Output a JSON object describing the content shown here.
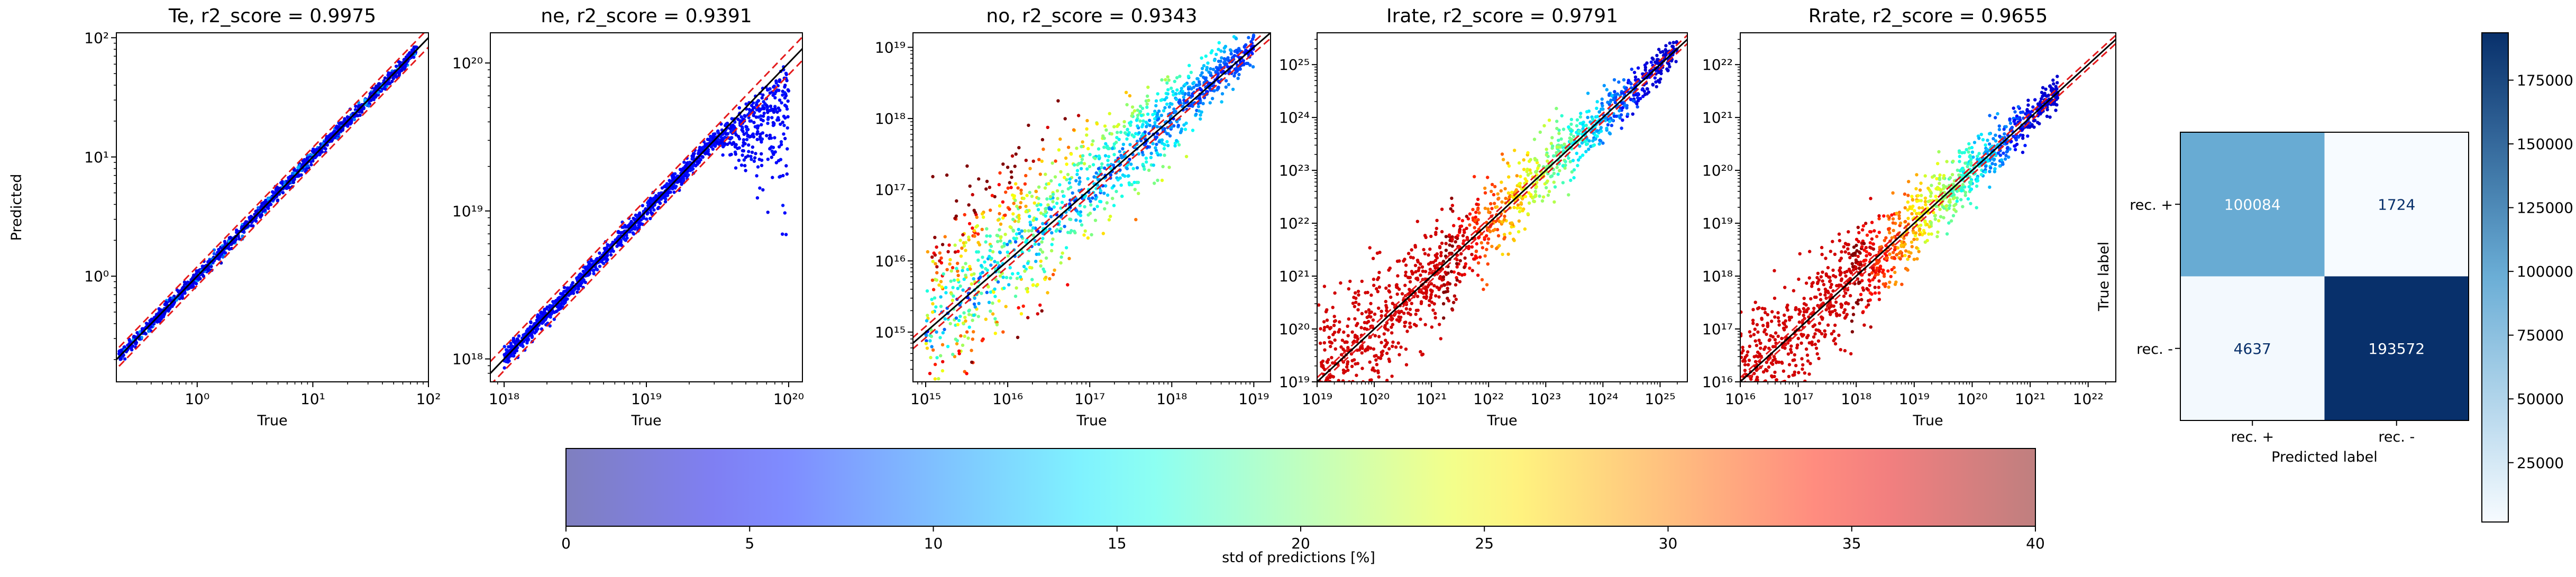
{
  "chart_data": [
    {
      "type": "scatter",
      "title": "Te, r2_score = 0.9975",
      "xlabel": "True",
      "ylabel": "Predicted",
      "xscale": "log",
      "yscale": "log",
      "xlim": [
        0.2,
        100
      ],
      "ylim": [
        0.13,
        110
      ],
      "xticks": [
        {
          "value": 1,
          "label": "10⁰"
        },
        {
          "value": 10,
          "label": "10¹"
        },
        {
          "value": 100,
          "label": "10²"
        }
      ],
      "yticks": [
        {
          "value": 1,
          "label": "10⁰"
        },
        {
          "value": 10,
          "label": "10¹"
        },
        {
          "value": 100,
          "label": "10²"
        }
      ],
      "data_range": [
        0.21,
        80
      ],
      "spread": "narrow",
      "color_scheme": "blue",
      "identity_line": "#000000",
      "bounds_line": "#e41a1c"
    },
    {
      "type": "scatter",
      "title": "ne, r2_score = 0.9391",
      "xlabel": "True",
      "ylabel": "",
      "xscale": "log",
      "yscale": "log",
      "xlim": [
        8e+17,
        1.25e+20
      ],
      "ylim": [
        7e+17,
        1.6e+20
      ],
      "xticks": [
        {
          "value": 1e+18,
          "label": "10¹⁸"
        },
        {
          "value": 1e+19,
          "label": "10¹⁹"
        },
        {
          "value": 1e+20,
          "label": "10²⁰"
        }
      ],
      "yticks": [
        {
          "value": 1e+18,
          "label": "10¹⁸"
        },
        {
          "value": 1e+19,
          "label": "10¹⁹"
        },
        {
          "value": 1e+20,
          "label": "10²⁰"
        }
      ],
      "data_range": [
        1e+18,
        1e+20
      ],
      "spread": "saturating",
      "color_scheme": "blue",
      "identity_line": "#000000",
      "bounds_line": "#e41a1c"
    },
    {
      "type": "scatter",
      "title": "no, r2_score = 0.9343",
      "xlabel": "True",
      "ylabel": "",
      "xscale": "log",
      "yscale": "log",
      "xlim": [
        700000000000000.0,
        1.6e+19
      ],
      "ylim": [
        200000000000000.0,
        1.6e+19
      ],
      "xticks": [
        {
          "value": 1000000000000000.0,
          "label": "10¹⁵"
        },
        {
          "value": 1e+16,
          "label": "10¹⁶"
        },
        {
          "value": 1e+17,
          "label": "10¹⁷"
        },
        {
          "value": 1e+18,
          "label": "10¹⁸"
        },
        {
          "value": 1e+19,
          "label": "10¹⁹"
        }
      ],
      "yticks": [
        {
          "value": 1000000000000000.0,
          "label": "10¹⁵"
        },
        {
          "value": 1e+16,
          "label": "10¹⁶"
        },
        {
          "value": 1e+17,
          "label": "10¹⁷"
        },
        {
          "value": 1e+18,
          "label": "10¹⁸"
        },
        {
          "value": 1e+19,
          "label": "10¹⁹"
        }
      ],
      "data_range": [
        1000000000000000.0,
        1e+19
      ],
      "spread": "wide-low",
      "color_scheme": "mixed",
      "identity_line": "#000000",
      "bounds_line": "#e41a1c"
    },
    {
      "type": "scatter",
      "title": "Irate, r2_score = 0.9791",
      "xlabel": "True",
      "ylabel": "",
      "xscale": "log",
      "yscale": "log",
      "xlim": [
        1e+19,
        3e+25
      ],
      "ylim": [
        1e+19,
        4e+25
      ],
      "xticks": [
        {
          "value": 1e+19,
          "label": "10¹⁹"
        },
        {
          "value": 1e+20,
          "label": "10²⁰"
        },
        {
          "value": 1e+21,
          "label": "10²¹"
        },
        {
          "value": 1e+22,
          "label": "10²²"
        },
        {
          "value": 1e+23,
          "label": "10²³"
        },
        {
          "value": 1e+24,
          "label": "10²⁴"
        },
        {
          "value": 1e+25,
          "label": "10²⁵"
        }
      ],
      "yticks": [
        {
          "value": 1e+19,
          "label": "10¹⁹"
        },
        {
          "value": 1e+20,
          "label": "10²⁰"
        },
        {
          "value": 1e+21,
          "label": "10²¹"
        },
        {
          "value": 1e+22,
          "label": "10²²"
        },
        {
          "value": 1e+23,
          "label": "10²³"
        },
        {
          "value": 1e+24,
          "label": "10²⁴"
        },
        {
          "value": 1e+25,
          "label": "10²⁵"
        }
      ],
      "data_range": [
        1e+19,
        2e+25
      ],
      "spread": "wide-low",
      "color_scheme": "hot-low",
      "identity_line": "#000000",
      "bounds_line": "#e41a1c"
    },
    {
      "type": "scatter",
      "title": "Rrate, r2_score = 0.9655",
      "xlabel": "True",
      "ylabel": "",
      "xscale": "log",
      "yscale": "log",
      "xlim": [
        1e+16,
        3e+22
      ],
      "ylim": [
        1e+16,
        4e+22
      ],
      "xticks": [
        {
          "value": 1e+16,
          "label": "10¹⁶"
        },
        {
          "value": 1e+17,
          "label": "10¹⁷"
        },
        {
          "value": 1e+18,
          "label": "10¹⁸"
        },
        {
          "value": 1e+19,
          "label": "10¹⁹"
        },
        {
          "value": 1e+20,
          "label": "10²⁰"
        },
        {
          "value": 1e+21,
          "label": "10²¹"
        },
        {
          "value": 1e+22,
          "label": "10²²"
        }
      ],
      "yticks": [
        {
          "value": 1e+16,
          "label": "10¹⁶"
        },
        {
          "value": 1e+17,
          "label": "10¹⁷"
        },
        {
          "value": 1e+18,
          "label": "10¹⁸"
        },
        {
          "value": 1e+19,
          "label": "10¹⁹"
        },
        {
          "value": 1e+20,
          "label": "10²⁰"
        },
        {
          "value": 1e+21,
          "label": "10²¹"
        },
        {
          "value": 1e+22,
          "label": "10²²"
        }
      ],
      "data_range": [
        1e+16,
        3e+21
      ],
      "spread": "wide-low",
      "color_scheme": "hot-low",
      "identity_line": "#000000",
      "bounds_line": "#e41a1c"
    },
    {
      "type": "heatmap",
      "title": "",
      "xlabel": "Predicted label",
      "ylabel": "True label",
      "x_categories": [
        "rec. +",
        "rec. -"
      ],
      "y_categories": [
        "rec. +",
        "rec. -"
      ],
      "values": [
        [
          100084,
          1724
        ],
        [
          4637,
          193572
        ]
      ],
      "colormap": "Blues",
      "value_range": [
        1724,
        193572
      ],
      "colorbar_ticks": [
        25000,
        50000,
        75000,
        100000,
        125000,
        150000,
        175000
      ]
    }
  ],
  "colorbar": {
    "label": "std of predictions [%]",
    "range": [
      0,
      40
    ],
    "ticks": [
      0,
      5,
      10,
      15,
      20,
      25,
      30,
      35,
      40
    ],
    "colormap": "jet",
    "alpha": 0.5
  },
  "colors": {
    "identity": "#000000",
    "bounds": "#e41a1c",
    "blues_low": "#f7fbff",
    "blues_high": "#08306b"
  }
}
